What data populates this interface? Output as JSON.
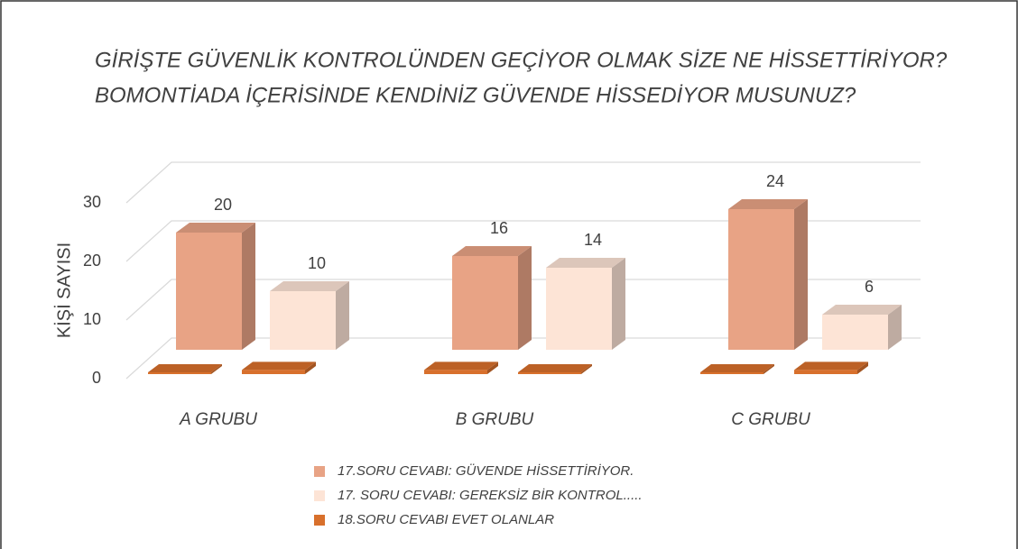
{
  "chart_data": {
    "type": "bar3d",
    "title": [
      "GİRİŞTE GÜVENLİK KONTROLÜNDEN GEÇİYOR OLMAK SİZE NE HİSSETTİRİYOR?",
      "BOMONTİADA İÇERİSİNDE KENDİNİZ GÜVENDE HİSSEDİYOR MUSUNUZ?"
    ],
    "y_label": "KİŞİ SAYISI",
    "categories": [
      "A GRUBU",
      null,
      "B GRUBU",
      null,
      "C GRUBU",
      null
    ],
    "series": [
      {
        "name": "17.SORU CEVABI: GÜVENDE HİSSETTİRİYOR.",
        "color": "#e8a385",
        "values": [
          20,
          null,
          16,
          null,
          24,
          null
        ]
      },
      {
        "name": "17. SORU CEVABI: GEREKSİZ BİR KONTROL.....",
        "color": "#fde4d6",
        "values": [
          null,
          10,
          null,
          14,
          null,
          6
        ]
      },
      {
        "name": "18.SORU CEVABI EVET OLANLAR",
        "color": "#d8702c",
        "values": [
          0,
          1,
          1,
          0,
          0,
          1
        ]
      }
    ],
    "ylim": [
      0,
      30
    ],
    "yticks": [
      0,
      10,
      20,
      30
    ],
    "grid": true
  }
}
